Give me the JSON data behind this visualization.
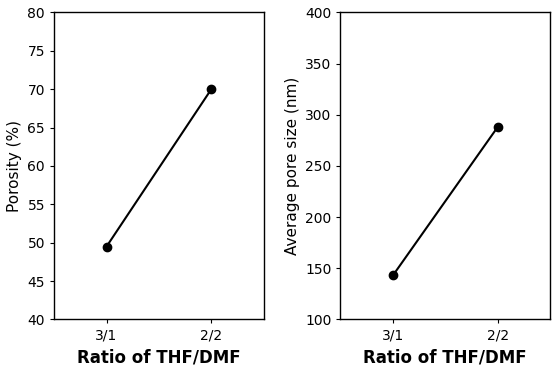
{
  "left_plot": {
    "x_labels": [
      "3/1",
      "2/2"
    ],
    "x_values": [
      0,
      1
    ],
    "y_values": [
      49.5,
      70.0
    ],
    "ylabel": "Porosity (%)",
    "xlabel": "Ratio of THF/DMF",
    "ylim": [
      40,
      80
    ],
    "yticks": [
      40,
      45,
      50,
      55,
      60,
      65,
      70,
      75,
      80
    ]
  },
  "right_plot": {
    "x_labels": [
      "3/1",
      "2/2"
    ],
    "x_values": [
      0,
      1
    ],
    "y_values": [
      143,
      288
    ],
    "ylabel": "Average pore size (nm)",
    "xlabel": "Ratio of THF/DMF",
    "ylim": [
      100,
      400
    ],
    "yticks": [
      100,
      150,
      200,
      250,
      300,
      350,
      400
    ]
  },
  "line_color": "#000000",
  "marker": "o",
  "markersize": 6,
  "linewidth": 1.5,
  "xlabel_fontsize": 12,
  "ylabel_fontsize": 11,
  "tick_fontsize": 10,
  "xlabel_fontweight": "bold",
  "background_color": "#ffffff"
}
